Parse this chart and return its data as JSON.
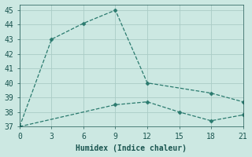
{
  "line1_x": [
    0,
    3,
    6,
    9,
    12,
    18,
    21
  ],
  "line1_y": [
    37.0,
    43.0,
    44.1,
    45.0,
    40.0,
    39.3,
    38.7
  ],
  "line2_x": [
    0,
    9,
    12,
    15,
    18,
    21
  ],
  "line2_y": [
    37.0,
    38.5,
    38.7,
    38.0,
    37.4,
    37.8
  ],
  "line_color": "#2a7a6e",
  "marker": "D",
  "marker_size": 2.5,
  "xlabel": "Humidex (Indice chaleur)",
  "xlim": [
    0,
    21
  ],
  "ylim": [
    37,
    45.4
  ],
  "xticks": [
    0,
    3,
    6,
    9,
    12,
    15,
    18,
    21
  ],
  "yticks": [
    37,
    38,
    39,
    40,
    41,
    42,
    43,
    44,
    45
  ],
  "bg_color": "#cce8e2",
  "grid_color": "#aaccc6",
  "font_color": "#1a5550",
  "font_size": 7
}
